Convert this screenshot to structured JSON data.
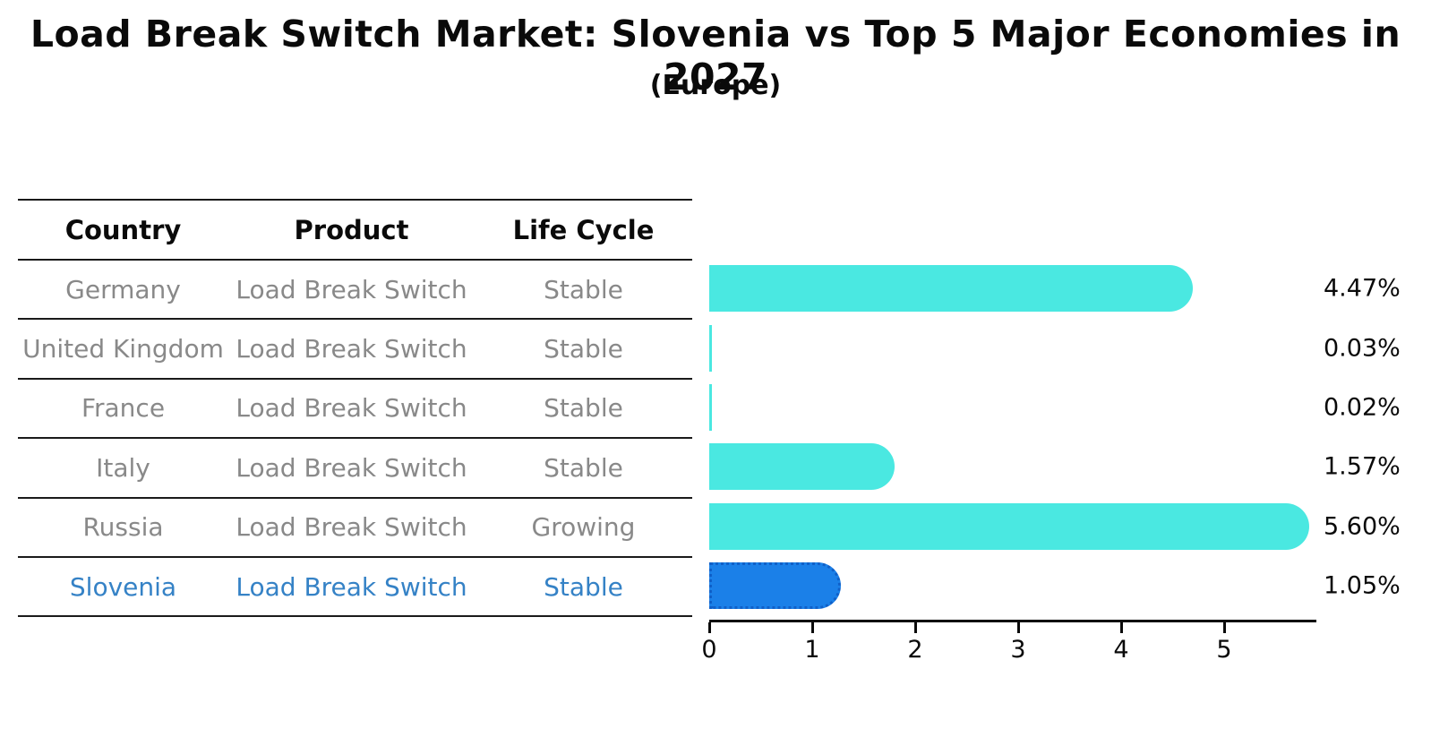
{
  "title": "Load Break Switch Market: Slovenia vs Top 5 Major Economies in 2027",
  "subtitle": "(Europe)",
  "table": {
    "headers": [
      "Country",
      "Product",
      "Life Cycle"
    ]
  },
  "chart_data": {
    "type": "bar",
    "orientation": "horizontal",
    "categories": [
      "Germany",
      "United Kingdom",
      "France",
      "Italy",
      "Russia",
      "Slovenia"
    ],
    "values": [
      4.47,
      0.03,
      0.02,
      1.57,
      5.6,
      1.05
    ],
    "rows": [
      {
        "country": "Germany",
        "product": "Load Break Switch",
        "life_cycle": "Stable",
        "value": 4.47,
        "value_label": "4.47%",
        "highlight": false
      },
      {
        "country": "United Kingdom",
        "product": "Load Break Switch",
        "life_cycle": "Stable",
        "value": 0.03,
        "value_label": "0.03%",
        "highlight": false
      },
      {
        "country": "France",
        "product": "Load Break Switch",
        "life_cycle": "Stable",
        "value": 0.02,
        "value_label": "0.02%",
        "highlight": false
      },
      {
        "country": "Italy",
        "product": "Load Break Switch",
        "life_cycle": "Stable",
        "value": 1.57,
        "value_label": "1.57%",
        "highlight": false
      },
      {
        "country": "Russia",
        "product": "Load Break Switch",
        "life_cycle": "Growing",
        "value": 5.6,
        "value_label": "5.60%",
        "highlight": false
      },
      {
        "country": "Slovenia",
        "product": "Load Break Switch",
        "life_cycle": "Stable",
        "value": 1.05,
        "value_label": "1.05%",
        "highlight": true
      }
    ],
    "x_ticks": [
      "0",
      "1",
      "2",
      "3",
      "4",
      "5"
    ],
    "xlim": [
      0,
      5.9
    ],
    "grid": false,
    "legend": "none",
    "colors": {
      "bar": "#4AE8E1",
      "highlight_bar": "#1B80E8",
      "highlight_border": "#1060C8",
      "row_text": "#898989",
      "highlight_text": "#3582C6",
      "axis_text": "#0a0a0a"
    }
  }
}
